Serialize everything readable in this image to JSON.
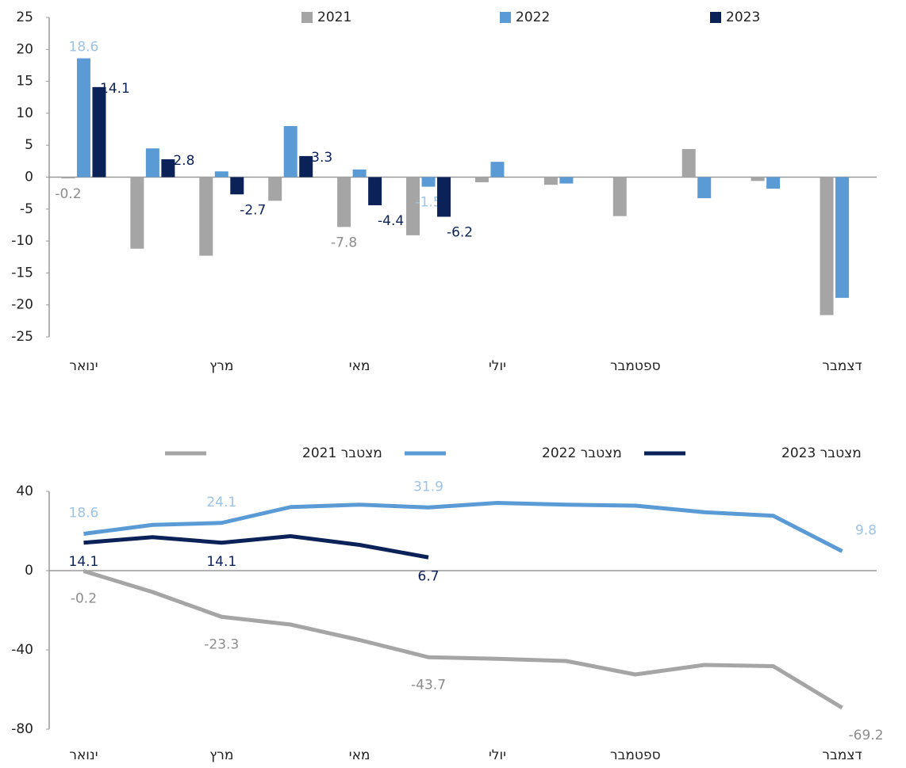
{
  "chart_data": [
    {
      "type": "bar",
      "categories": [
        "ינואר",
        null,
        "מרץ",
        null,
        "מאי",
        null,
        "יולי",
        null,
        "ספטמבר",
        null,
        null,
        "דצמבר"
      ],
      "series": [
        {
          "name": "2021",
          "color": "#a5a5a5",
          "label_color": "#8c8c8c",
          "values": [
            -0.2,
            -11.2,
            -12.3,
            -3.7,
            -7.8,
            -9.1,
            -0.8,
            -1.2,
            -6.1,
            4.4,
            -0.6,
            -21.6
          ],
          "value_labels": [
            "-0.2",
            null,
            null,
            null,
            "-7.8",
            null,
            null,
            null,
            null,
            null,
            null,
            null
          ]
        },
        {
          "name": "2022",
          "color": "#5b9bd5",
          "label_color": "#9dc3e6",
          "values": [
            18.6,
            4.5,
            0.9,
            8.0,
            1.2,
            -1.5,
            2.4,
            -1.0,
            null,
            -3.3,
            -1.8,
            -18.9
          ],
          "value_labels": [
            "18.6",
            null,
            null,
            null,
            null,
            "-1.5",
            null,
            null,
            null,
            null,
            null,
            null
          ]
        },
        {
          "name": "2023",
          "color": "#0b2259",
          "label_color": "#0b2259",
          "values": [
            14.1,
            2.8,
            -2.7,
            3.3,
            -4.4,
            -6.2,
            null,
            null,
            null,
            null,
            null,
            null
          ],
          "value_labels": [
            "14.1",
            "2.8",
            "-2.7",
            "3.3",
            "-4.4",
            "-6.2",
            null,
            null,
            null,
            null,
            null,
            null
          ]
        }
      ],
      "ylim": [
        -25,
        25
      ],
      "yticks": [
        -25,
        -20,
        -15,
        -10,
        -5,
        0,
        5,
        10,
        15,
        20,
        25
      ]
    },
    {
      "type": "line",
      "categories": [
        "ינואר",
        null,
        "מרץ",
        null,
        "מאי",
        null,
        "יולי",
        null,
        "ספטמבר",
        null,
        null,
        "דצמבר"
      ],
      "series": [
        {
          "name": "מצטבר 2021",
          "color": "#a5a5a5",
          "label_color": "#8c8c8c",
          "values": [
            -0.2,
            -10.8,
            -23.3,
            -27.2,
            -35,
            -43.7,
            -44.5,
            -45.6,
            -52.4,
            -47.6,
            -48.2,
            -69.2
          ],
          "value_labels": [
            "-0.2",
            null,
            "-23.3",
            null,
            null,
            "-43.7",
            null,
            null,
            null,
            null,
            null,
            "-69.2"
          ]
        },
        {
          "name": "מצטבר 2022",
          "color": "#5b9bd5",
          "label_color": "#9dc3e6",
          "values": [
            18.6,
            23.1,
            24.1,
            32.1,
            33.3,
            31.9,
            34.2,
            33.3,
            32.8,
            29.5,
            27.7,
            9.8
          ],
          "value_labels": [
            "18.6",
            null,
            "24.1",
            null,
            null,
            "31.9",
            null,
            null,
            null,
            null,
            null,
            "9.8"
          ]
        },
        {
          "name": "מצטבר 2023",
          "color": "#0b2259",
          "label_color": "#0b2259",
          "values": [
            14.1,
            16.9,
            14.1,
            17.4,
            13.0,
            6.7,
            null,
            null,
            null,
            null,
            null,
            null
          ],
          "value_labels": [
            "14.1",
            null,
            "14.1",
            null,
            null,
            "6.7",
            null,
            null,
            null,
            null,
            null,
            null
          ]
        }
      ],
      "ylim": [
        -80,
        40
      ],
      "yticks": [
        -80,
        -40,
        0,
        40
      ]
    }
  ]
}
